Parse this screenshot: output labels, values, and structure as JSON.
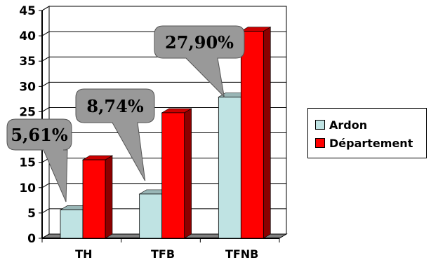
{
  "chart_data": {
    "type": "bar",
    "title": "",
    "xlabel": "",
    "ylabel": "",
    "categories": [
      "TH",
      "TFB",
      "TFNB"
    ],
    "series": [
      {
        "name": "Ardon",
        "values": [
          5.61,
          8.74,
          27.9
        ],
        "color": "#bfe3e3"
      },
      {
        "name": "Département",
        "values": [
          15.5,
          24.8,
          40.9
        ],
        "color": "#ff0000"
      }
    ],
    "ylim": [
      0,
      45
    ],
    "yticks": [
      "0",
      "5",
      "10",
      "15",
      "20",
      "25",
      "30",
      "35",
      "40",
      "45"
    ],
    "grid": true,
    "legend": "right",
    "annotations": [
      "5,61%",
      "8,74%",
      "27,90%"
    ],
    "style": "3d-bar",
    "callout_color": "#999999"
  }
}
